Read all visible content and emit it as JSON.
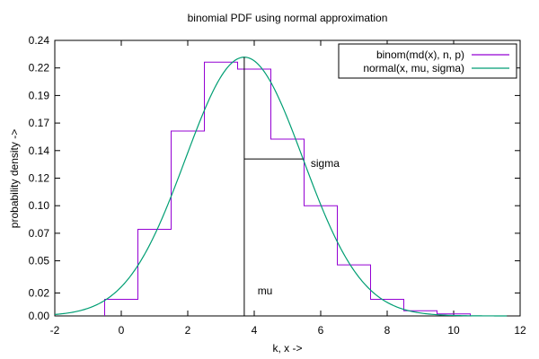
{
  "chart_data": {
    "type": "line",
    "title": "binomial PDF using normal approximation",
    "xlabel": "k, x ->",
    "ylabel": "probability density ->",
    "xlim": [
      -2,
      12
    ],
    "ylim": [
      0,
      0.24
    ],
    "xticks": [
      -2,
      0,
      2,
      4,
      6,
      8,
      10,
      12
    ],
    "yticks": [
      "0.00",
      "0.02",
      "0.05",
      "0.07",
      "0.10",
      "0.12",
      "0.14",
      "0.17",
      "0.19",
      "0.22",
      "0.24"
    ],
    "ytick_values": [
      0,
      0.02,
      0.048,
      0.072,
      0.096,
      0.12,
      0.144,
      0.168,
      0.192,
      0.216,
      0.24
    ],
    "grid": false,
    "legend_position": "top-right",
    "series": [
      {
        "name": "binom(md(x), n, p)",
        "color": "#9400d3",
        "style": "steps",
        "x": [
          0,
          1,
          2,
          3,
          4,
          5,
          6,
          7,
          8,
          9,
          10
        ],
        "y": [
          0.0145,
          0.0754,
          0.161,
          0.221,
          0.215,
          0.154,
          0.096,
          0.0445,
          0.0145,
          0.0045,
          0.0018
        ]
      },
      {
        "name": "normal(x, mu, sigma)",
        "color": "#009e73",
        "style": "curve",
        "mu": 3.7,
        "sigma": 1.77,
        "x_range": [
          -2,
          11.6
        ]
      }
    ],
    "annotations": [
      {
        "text": "mu",
        "x": 4.1,
        "y": 0.022
      },
      {
        "text": "sigma",
        "x": 5.7,
        "y": 0.133
      }
    ]
  }
}
